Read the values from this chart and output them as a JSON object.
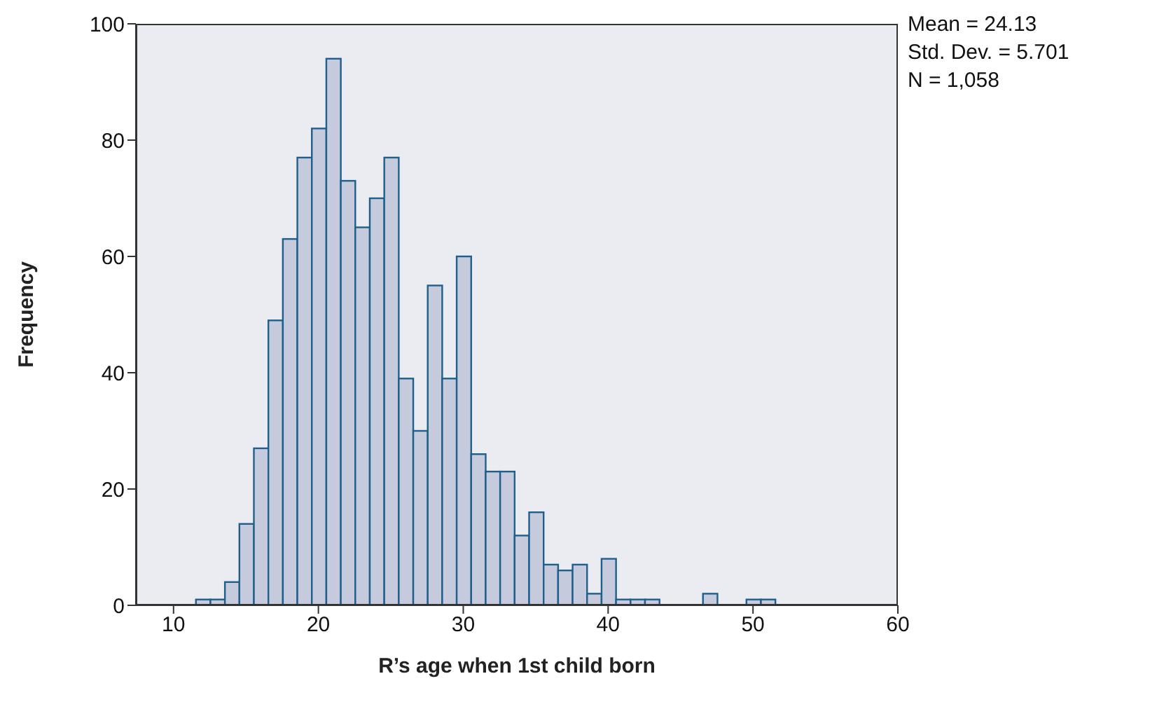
{
  "chart_data": {
    "type": "histogram",
    "xlabel": "R’s age when 1st child born",
    "ylabel": "Frequency",
    "annotations": [
      "Mean = 24.13",
      "Std. Dev. = 5.701",
      "N = 1,058"
    ],
    "bins": [
      11.5,
      12.5,
      13.5,
      14.5,
      15.5,
      16.5,
      17.5,
      18.5,
      19.5,
      20.5,
      21.5,
      22.5,
      23.5,
      24.5,
      25.5,
      26.5,
      27.5,
      28.5,
      29.5,
      30.5,
      31.5,
      32.5,
      33.5,
      34.5,
      35.5,
      36.5,
      37.5,
      38.5,
      39.5,
      40.5,
      41.5,
      42.5,
      43.5,
      44.5,
      45.5,
      46.5,
      47.5,
      48.5,
      49.5,
      50.5,
      51.5
    ],
    "values": [
      1,
      1,
      4,
      14,
      27,
      49,
      63,
      77,
      82,
      94,
      73,
      65,
      70,
      77,
      39,
      30,
      55,
      39,
      60,
      26,
      23,
      23,
      12,
      16,
      7,
      6,
      7,
      2,
      8,
      1,
      1,
      1,
      0,
      0,
      0,
      2,
      0,
      0,
      1,
      1
    ],
    "color": "#c5cbdc",
    "xlim": [
      7.4,
      60
    ],
    "xticks": [
      10,
      20,
      30,
      40,
      50,
      60
    ],
    "ylim": [
      0,
      100
    ],
    "yticks": [
      0,
      20,
      40,
      60,
      80,
      100
    ]
  }
}
